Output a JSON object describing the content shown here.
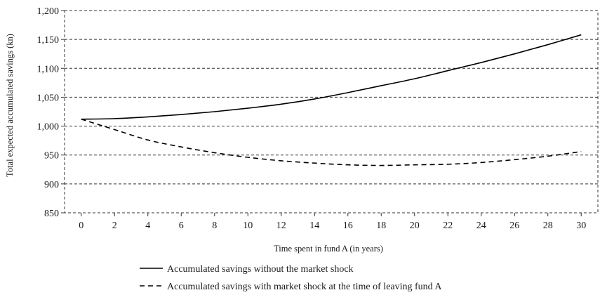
{
  "chart_data": {
    "type": "line",
    "xlabel": "Time spent in fund A (in years)",
    "ylabel": "Total expected accumulated savings (kn)",
    "xlim": [
      -1,
      31
    ],
    "ylim": [
      850,
      1200
    ],
    "x_ticks": [
      "0",
      "2",
      "4",
      "6",
      "8",
      "10",
      "12",
      "14",
      "16",
      "18",
      "20",
      "22",
      "24",
      "26",
      "28",
      "30"
    ],
    "y_ticks": [
      "850",
      "900",
      "950",
      "1,000",
      "1,050",
      "1,100",
      "1,150",
      "1,200"
    ],
    "grid": "horizontal dashed",
    "legend_position": "bottom",
    "x": [
      0,
      2,
      4,
      6,
      8,
      10,
      12,
      14,
      16,
      18,
      20,
      22,
      24,
      26,
      28,
      30
    ],
    "series": [
      {
        "name": "Accumulated savings without the market shock",
        "style": "solid",
        "color": "#000000",
        "values": [
          1012,
          1013,
          1016,
          1020,
          1025,
          1031,
          1038,
          1047,
          1058,
          1070,
          1082,
          1096,
          1110,
          1125,
          1141,
          1158
        ]
      },
      {
        "name": "Accumulated savings with market shock at the time of leaving fund A",
        "style": "dashed",
        "color": "#000000",
        "values": [
          1012,
          994,
          976,
          964,
          954,
          946,
          940,
          936,
          933,
          932,
          933,
          934,
          937,
          942,
          948,
          956
        ]
      }
    ]
  }
}
